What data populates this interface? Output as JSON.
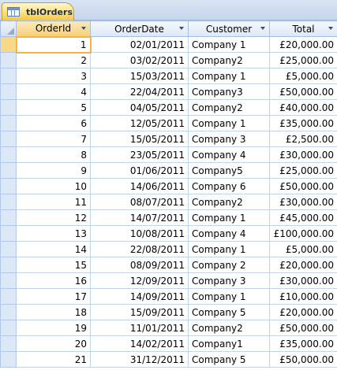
{
  "tab": {
    "label": "tblOrders",
    "icon": "table-icon"
  },
  "columns": [
    {
      "key": "id",
      "label": "OrderId"
    },
    {
      "key": "date",
      "label": "OrderDate"
    },
    {
      "key": "customer",
      "label": "Customer"
    },
    {
      "key": "total",
      "label": "Total"
    }
  ],
  "rows": [
    {
      "id": "1",
      "date": "02/01/2011",
      "customer": "Company 1",
      "total": "£20,000.00"
    },
    {
      "id": "2",
      "date": "03/02/2011",
      "customer": "Company2",
      "total": "£25,000.00"
    },
    {
      "id": "3",
      "date": "15/03/2011",
      "customer": "Company 1",
      "total": "£5,000.00"
    },
    {
      "id": "4",
      "date": "22/04/2011",
      "customer": "Company3",
      "total": "£50,000.00"
    },
    {
      "id": "5",
      "date": "04/05/2011",
      "customer": "Company2",
      "total": "£40,000.00"
    },
    {
      "id": "6",
      "date": "12/05/2011",
      "customer": "Company 1",
      "total": "£35,000.00"
    },
    {
      "id": "7",
      "date": "15/05/2011",
      "customer": "Company 3",
      "total": "£2,500.00"
    },
    {
      "id": "8",
      "date": "23/05/2011",
      "customer": "Company 4",
      "total": "£30,000.00"
    },
    {
      "id": "9",
      "date": "01/06/2011",
      "customer": "Company5",
      "total": "£25,000.00"
    },
    {
      "id": "10",
      "date": "14/06/2011",
      "customer": "Company 6",
      "total": "£50,000.00"
    },
    {
      "id": "11",
      "date": "08/07/2011",
      "customer": "Company2",
      "total": "£30,000.00"
    },
    {
      "id": "12",
      "date": "14/07/2011",
      "customer": "Company 1",
      "total": "£45,000.00"
    },
    {
      "id": "13",
      "date": "10/08/2011",
      "customer": "Company 4",
      "total": "£100,000.00"
    },
    {
      "id": "14",
      "date": "22/08/2011",
      "customer": "Company 1",
      "total": "£5,000.00"
    },
    {
      "id": "15",
      "date": "08/09/2011",
      "customer": "Company 2",
      "total": "£20,000.00"
    },
    {
      "id": "16",
      "date": "12/09/2011",
      "customer": "Company 3",
      "total": "£30,000.00"
    },
    {
      "id": "17",
      "date": "14/09/2011",
      "customer": "Company 1",
      "total": "£10,000.00"
    },
    {
      "id": "18",
      "date": "15/09/2011",
      "customer": "Company 5",
      "total": "£20,000.00"
    },
    {
      "id": "19",
      "date": "11/01/2011",
      "customer": "Company2",
      "total": "£50,000.00"
    },
    {
      "id": "20",
      "date": "14/02/2011",
      "customer": "Company1",
      "total": "£35,000.00"
    },
    {
      "id": "21",
      "date": "31/12/2011",
      "customer": "Company 5",
      "total": "£50,000.00"
    }
  ],
  "colors": {
    "selected_header": "#f6cf7a",
    "grid_line": "#c3d3ea",
    "header_bg": "#dde8f6"
  }
}
